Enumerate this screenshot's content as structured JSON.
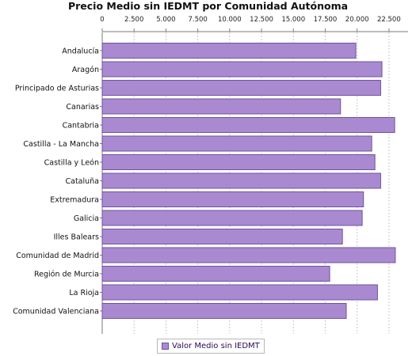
{
  "chart_data": {
    "type": "bar",
    "orientation": "horizontal",
    "title": "Precio Medio sin IEDMT por Comunidad Autónoma",
    "categories": [
      "Andalucía",
      "Aragón",
      "Principado de Asturias",
      "Canarias",
      "Cantabria",
      "Castilla - La Mancha",
      "Castilla y León",
      "Cataluña",
      "Extremadura",
      "Galicia",
      "Illes Balears",
      "Comunidad de Madrid",
      "Región de Murcia",
      "La Rioja",
      "Comunidad Valenciana"
    ],
    "series": [
      {
        "name": "Valor Medio sin IEDMT",
        "values": [
          19900,
          21950,
          21850,
          18700,
          22950,
          21150,
          21400,
          21850,
          20500,
          20400,
          18850,
          23000,
          17850,
          21600,
          19150
        ]
      }
    ],
    "xlim": [
      0,
      24000
    ],
    "xticks": [
      0,
      2500,
      5000,
      7500,
      10000,
      12500,
      15000,
      17500,
      20000,
      22500
    ],
    "xtick_labels": [
      "0",
      "2.500",
      "5.000",
      "7.500",
      "10.000",
      "12.500",
      "15.000",
      "17.500",
      "20.000",
      "22.500"
    ],
    "axis_position": "top",
    "grid": "vertical dashed",
    "legend_position": "bottom",
    "colors": {
      "bar_fill": "#a98ad0",
      "bar_stroke": "#6f52a0",
      "grid": "#c8c8c8",
      "axis": "#7a7a7a"
    }
  }
}
